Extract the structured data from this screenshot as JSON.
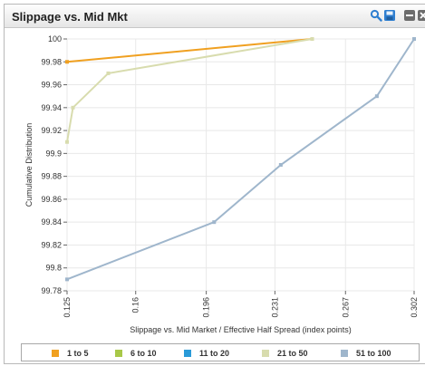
{
  "widget": {
    "title": "Slippage vs. Mid Mkt",
    "icons": [
      "search-icon",
      "save-icon",
      "minimize-icon",
      "close-icon"
    ]
  },
  "chart_data": {
    "type": "line",
    "title": "",
    "xlabel": "Slippage vs. Mid Market / Effective Half Spread (index points)",
    "ylabel": "Cumulative Distribution",
    "xlim": [
      0.125,
      0.302
    ],
    "ylim": [
      99.78,
      100
    ],
    "x_ticks": [
      "0.125",
      "0.16",
      "0.196",
      "0.231",
      "0.267",
      "0.302"
    ],
    "y_ticks": [
      "99.78",
      "99.8",
      "99.82",
      "99.84",
      "99.86",
      "99.88",
      "99.9",
      "99.92",
      "99.94",
      "99.96",
      "99.98",
      "100"
    ],
    "grid": true,
    "legend_position": "bottom",
    "series": [
      {
        "name": "1 to 5",
        "color": "#f0a020",
        "points": [
          [
            0.125,
            99.98
          ],
          [
            0.25,
            100.0
          ]
        ]
      },
      {
        "name": "6 to 10",
        "color": "#a8c848",
        "points": []
      },
      {
        "name": "11 to 20",
        "color": "#2a9ad8",
        "points": []
      },
      {
        "name": "21 to 50",
        "color": "#d8dcae",
        "points": [
          [
            0.125,
            99.91
          ],
          [
            0.128,
            99.94
          ],
          [
            0.146,
            99.97
          ],
          [
            0.25,
            100.0
          ]
        ]
      },
      {
        "name": "51 to 100",
        "color": "#9fb6cc",
        "points": [
          [
            0.125,
            99.79
          ],
          [
            0.2,
            99.84
          ],
          [
            0.234,
            99.89
          ],
          [
            0.283,
            99.95
          ],
          [
            0.302,
            100.0
          ]
        ]
      }
    ]
  }
}
